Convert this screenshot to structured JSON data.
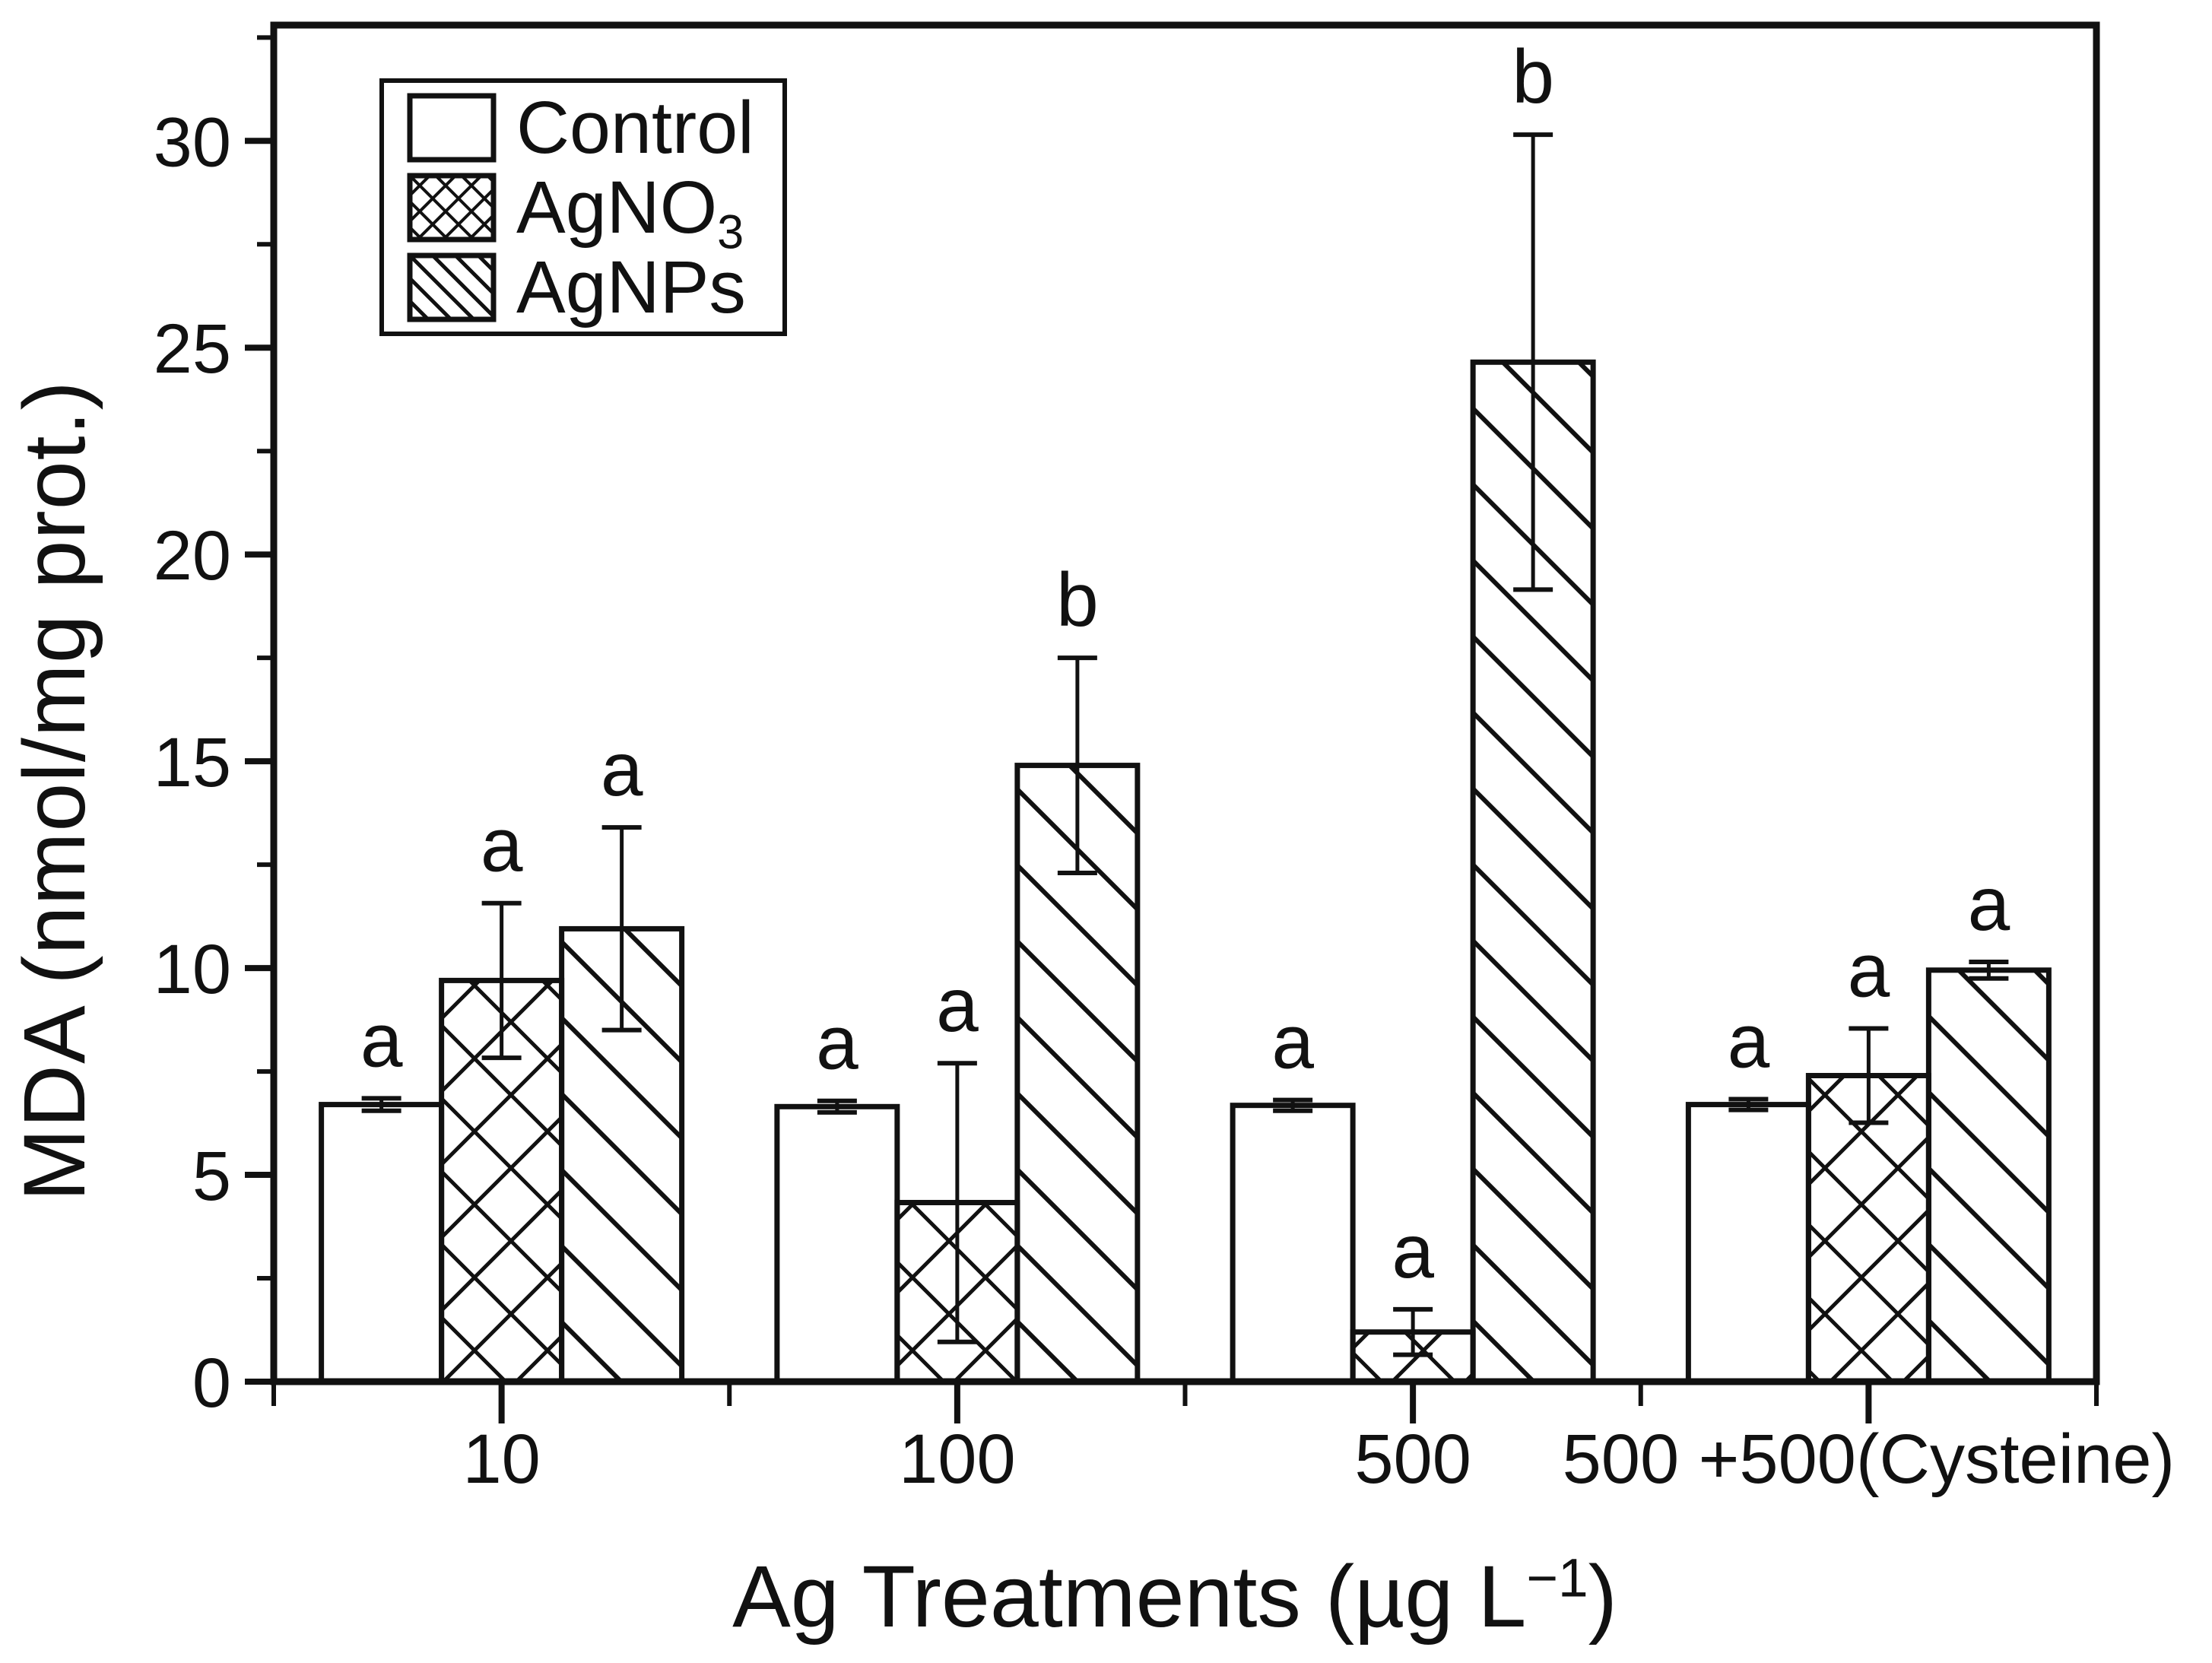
{
  "figure": {
    "background": "#ffffff",
    "ink_color": "#111111"
  },
  "axes": {
    "y_title": "MDA (nmol/mg prot.)",
    "x_title_pre": "Ag Treatments (µg L",
    "x_title_sup": "−1",
    "x_title_post": ")"
  },
  "legend": {
    "items": [
      {
        "text": "Control",
        "sub": "",
        "swatch": "solid-white-swatch"
      },
      {
        "text": "AgNO",
        "sub": "3",
        "swatch": "crosshatch-swatch"
      },
      {
        "text": "AgNPs",
        "sub": "",
        "swatch": "diagonal-swatch"
      }
    ]
  },
  "chart_data": {
    "type": "bar",
    "title": "",
    "xlabel": "Ag Treatments (µg L⁻¹)",
    "ylabel": "MDA (nmol/mg prot.)",
    "categories": [
      "10",
      "100",
      "500",
      "500 +500(Cysteine)"
    ],
    "series": [
      {
        "name": "Control",
        "pattern": "solid-white",
        "values": [
          6.7,
          6.65,
          6.68,
          6.7
        ],
        "errors": [
          0.15,
          0.14,
          0.13,
          0.13
        ],
        "letters": [
          "a",
          "a",
          "a",
          "a"
        ]
      },
      {
        "name": "AgNO3",
        "pattern": "crosshatch",
        "values": [
          9.7,
          4.33,
          1.2,
          7.4
        ],
        "errors": [
          1.87,
          3.37,
          0.55,
          1.14
        ],
        "letters": [
          "a",
          "a",
          "a",
          "a"
        ]
      },
      {
        "name": "AgNPs",
        "pattern": "diagonal",
        "values": [
          10.95,
          14.9,
          24.65,
          9.95
        ],
        "errors": [
          2.45,
          2.6,
          5.5,
          0.2
        ],
        "letters": [
          "a",
          "b",
          "b",
          "a"
        ]
      }
    ],
    "ylim": [
      0,
      32.8
    ],
    "ytick_step": 5,
    "ytick_minor_step": 2.5,
    "grid": false,
    "legend_position": "top-left",
    "error_bars": true,
    "significance_letters": true
  }
}
